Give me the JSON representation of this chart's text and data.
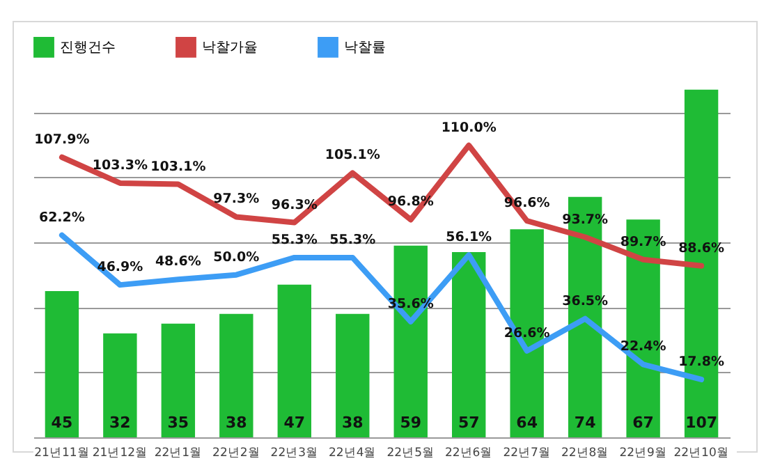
{
  "chart_data": {
    "type": "bar",
    "categories": [
      "21년11월",
      "21년12월",
      "22년1월",
      "22년2월",
      "22년3월",
      "22년4월",
      "22년5월",
      "22년6월",
      "22년7월",
      "22년8월",
      "22년9월",
      "22년10월"
    ],
    "series": [
      {
        "name": "진행건수",
        "color": "#1fbb35",
        "values": [
          45,
          32,
          35,
          38,
          47,
          38,
          59,
          57,
          64,
          74,
          67,
          107
        ],
        "value_labels": [
          "45",
          "32",
          "35",
          "38",
          "47",
          "38",
          "59",
          "57",
          "64",
          "74",
          "67",
          "107"
        ]
      },
      {
        "name": "낙찰가율",
        "type": "line",
        "axis": "y2",
        "color": "#d04444",
        "values": [
          107.9,
          103.3,
          103.1,
          97.3,
          96.3,
          105.1,
          96.8,
          110.0,
          96.6,
          93.7,
          89.7,
          88.6
        ],
        "value_labels": [
          "107.9%",
          "103.3%",
          "103.1%",
          "97.3%",
          "96.3%",
          "105.1%",
          "96.8%",
          "110.0%",
          "96.6%",
          "93.7%",
          "89.7%",
          "88.6%"
        ]
      },
      {
        "name": "낙찰률",
        "type": "line",
        "color": "#3d9df5",
        "values": [
          62.2,
          46.9,
          48.6,
          50.0,
          55.3,
          55.3,
          35.6,
          56.1,
          26.6,
          36.5,
          22.4,
          17.8
        ],
        "value_labels": [
          "62.2%",
          "46.9%",
          "48.6%",
          "50.0%",
          "55.3%",
          "55.3%",
          "35.6%",
          "56.1%",
          "26.6%",
          "36.5%",
          "22.4%",
          "17.8%"
        ]
      }
    ],
    "grid": "y",
    "legend": "top",
    "tick_labels": "x"
  }
}
